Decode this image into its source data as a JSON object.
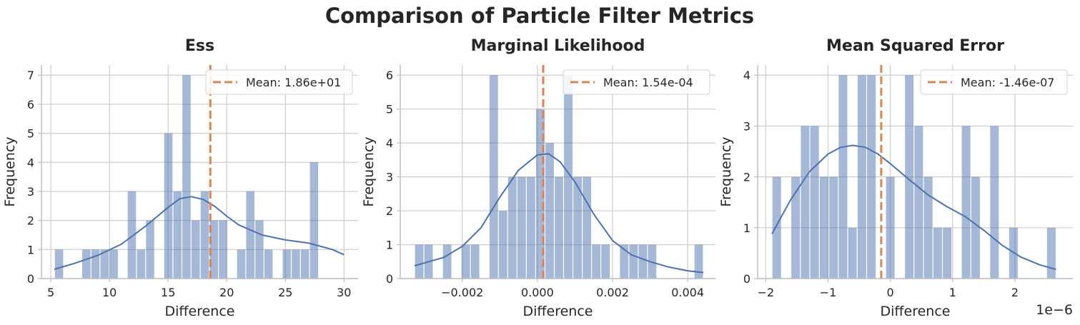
{
  "figure": {
    "title": "Comparison of Particle Filter Metrics"
  },
  "colors": {
    "bar": "#4c72b0",
    "kde": "#4c72b0",
    "mean_line": "#dd8452",
    "grid": "#cccccc",
    "axis": "#bfbfbf",
    "text": "#262626"
  },
  "chart_data": [
    {
      "type": "histogram",
      "title": "Ess",
      "xlabel": "Difference",
      "ylabel": "Frequency",
      "xlim": [
        4.2,
        31.2
      ],
      "ylim": [
        0,
        7.35
      ],
      "xticks": [
        5,
        10,
        15,
        20,
        25,
        30
      ],
      "xtick_labels": [
        "5",
        "10",
        "15",
        "20",
        "25",
        "30"
      ],
      "yticks": [
        0,
        1,
        2,
        3,
        4,
        5,
        6,
        7
      ],
      "ytick_labels": [
        "0",
        "1",
        "2",
        "3",
        "4",
        "5",
        "6",
        "7"
      ],
      "bin_edges": [
        5.31,
        6.09,
        6.86,
        7.64,
        8.42,
        9.19,
        9.97,
        10.75,
        11.52,
        12.3,
        13.08,
        13.85,
        14.63,
        15.41,
        16.18,
        16.96,
        17.74,
        18.51,
        19.29,
        20.07,
        20.84,
        21.62,
        22.4,
        23.17,
        23.95,
        24.73,
        25.5,
        26.28,
        27.06,
        27.83,
        28.61,
        29.39
      ],
      "counts": [
        1,
        0,
        0,
        1,
        1,
        1,
        1,
        0,
        3,
        1,
        2,
        0,
        5,
        3,
        7,
        2,
        3,
        2,
        2,
        0,
        1,
        3,
        2,
        1,
        0,
        1,
        1,
        1,
        4,
        0,
        0
      ],
      "kde": {
        "x": [
          5.3,
          7,
          9,
          11,
          13,
          15,
          16,
          17,
          18,
          19,
          20,
          21,
          23,
          25,
          27,
          29,
          30
        ],
        "y": [
          0.32,
          0.52,
          0.8,
          1.18,
          1.78,
          2.45,
          2.75,
          2.82,
          2.72,
          2.48,
          2.15,
          1.85,
          1.5,
          1.33,
          1.22,
          1.0,
          0.82
        ]
      },
      "mean": 18.6,
      "legend_label": "Mean: 1.86e+01",
      "legend_loc": "upper right",
      "offset_text": ""
    },
    {
      "type": "histogram",
      "title": "Marginal Likelihood",
      "xlabel": "Difference",
      "ylabel": "Frequency",
      "xlim": [
        -0.00365,
        0.00474
      ],
      "ylim": [
        0,
        6.3
      ],
      "xticks": [
        -0.002,
        0.0,
        0.002,
        0.004
      ],
      "xtick_labels": [
        "−0.002",
        "0.000",
        "0.002",
        "0.004"
      ],
      "yticks": [
        0,
        1,
        2,
        3,
        4,
        5,
        6
      ],
      "ytick_labels": [
        "0",
        "1",
        "2",
        "3",
        "4",
        "5",
        "6"
      ],
      "bin_edges": [
        -0.00327,
        -0.003022,
        -0.002774,
        -0.002526,
        -0.002278,
        -0.00203,
        -0.001782,
        -0.001534,
        -0.001286,
        -0.001038,
        -0.00079,
        -0.000542,
        -0.000294,
        -4.6e-05,
        0.000202,
        0.00045,
        0.000698,
        0.000946,
        0.001194,
        0.001442,
        0.00169,
        0.001938,
        0.002186,
        0.002434,
        0.002682,
        0.00293,
        0.003178,
        0.003426,
        0.003674,
        0.003922,
        0.00417,
        0.004418
      ],
      "counts": [
        1,
        1,
        0,
        1,
        0,
        1,
        1,
        0,
        6,
        2,
        3,
        3,
        3,
        5,
        4,
        3,
        6,
        3,
        3,
        1,
        1,
        0,
        1,
        1,
        1,
        1,
        0,
        0,
        0,
        0,
        1
      ],
      "kde": {
        "x": [
          -0.00327,
          -0.0025,
          -0.002,
          -0.0015,
          -0.001,
          -0.0005,
          0.0,
          0.0003,
          0.0006,
          0.001,
          0.0015,
          0.002,
          0.0025,
          0.003,
          0.0035,
          0.004,
          0.00442
        ],
        "y": [
          0.38,
          0.62,
          0.95,
          1.5,
          2.4,
          3.2,
          3.65,
          3.68,
          3.45,
          2.85,
          1.9,
          1.12,
          0.7,
          0.5,
          0.34,
          0.23,
          0.18
        ]
      },
      "mean": 0.000154,
      "legend_label": "Mean: 1.54e-04",
      "legend_loc": "upper right",
      "offset_text": ""
    },
    {
      "type": "histogram",
      "title": "Mean Squared Error",
      "xlabel": "Difference",
      "ylabel": "Frequency",
      "xlim": [
        -2.13,
        2.93
      ],
      "ylim": [
        0,
        4.2
      ],
      "xticks": [
        -2,
        -1,
        0,
        1,
        2
      ],
      "xtick_labels": [
        "−2",
        "−1",
        "0",
        "1",
        "2"
      ],
      "yticks": [
        0,
        1,
        2,
        3,
        4
      ],
      "ytick_labels": [
        "0",
        "1",
        "2",
        "3",
        "4"
      ],
      "bin_edges": [
        -1.9,
        -1.748,
        -1.596,
        -1.444,
        -1.292,
        -1.14,
        -0.988,
        -0.836,
        -0.684,
        -0.532,
        -0.38,
        -0.228,
        -0.076,
        0.076,
        0.228,
        0.38,
        0.532,
        0.684,
        0.836,
        0.988,
        1.14,
        1.292,
        1.444,
        1.596,
        1.748,
        1.9,
        2.052,
        2.204,
        2.356,
        2.508,
        2.66
      ],
      "counts": [
        2,
        0,
        2,
        3,
        3,
        2,
        2,
        4,
        1,
        4,
        4,
        0,
        2,
        0,
        4,
        3,
        2,
        1,
        1,
        0,
        3,
        2,
        0,
        3,
        0,
        1,
        0,
        0,
        0,
        1
      ],
      "kde": {
        "x": [
          -1.9,
          -1.6,
          -1.3,
          -1.0,
          -0.8,
          -0.6,
          -0.4,
          -0.2,
          0.0,
          0.3,
          0.6,
          0.9,
          1.2,
          1.5,
          1.8,
          2.1,
          2.4,
          2.66
        ],
        "y": [
          0.88,
          1.55,
          2.1,
          2.45,
          2.58,
          2.62,
          2.58,
          2.45,
          2.26,
          1.95,
          1.65,
          1.42,
          1.22,
          0.95,
          0.65,
          0.42,
          0.27,
          0.18
        ]
      },
      "mean": -0.146,
      "legend_label": "Mean: -1.46e-07",
      "legend_loc": "upper right",
      "offset_text": "1e−6"
    }
  ]
}
